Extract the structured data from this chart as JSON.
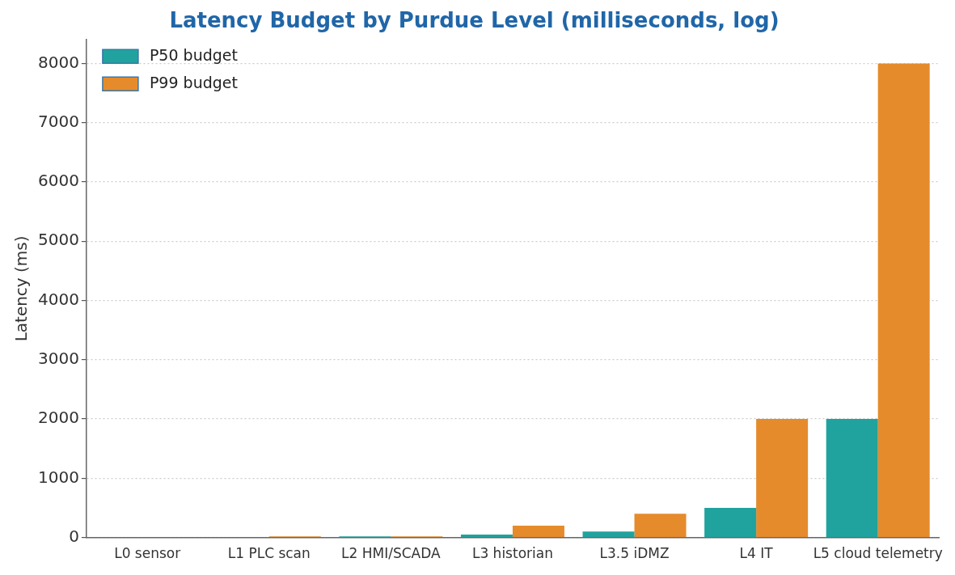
{
  "chart_data": {
    "type": "bar",
    "title": "Latency Budget by Purdue Level (milliseconds, log)",
    "ylabel": "Latency (ms)",
    "categories": [
      "L0 sensor",
      "L1 PLC scan",
      "L2 HMI/SCADA",
      "L3 historian",
      "L3.5 iDMZ",
      "L4 IT",
      "L5 cloud telemetry"
    ],
    "series": [
      {
        "name": "P50 budget",
        "color": "#20a39e",
        "values": [
          0,
          0,
          20,
          50,
          100,
          500,
          2000
        ]
      },
      {
        "name": "P99 budget",
        "color": "#e58b2c",
        "values": [
          0,
          20,
          20,
          200,
          400,
          2000,
          8000
        ]
      }
    ],
    "ylim": [
      0,
      8400
    ],
    "yticks": [
      0,
      1000,
      2000,
      3000,
      4000,
      5000,
      6000,
      7000,
      8000
    ],
    "grid": "y",
    "legend": "top left"
  }
}
